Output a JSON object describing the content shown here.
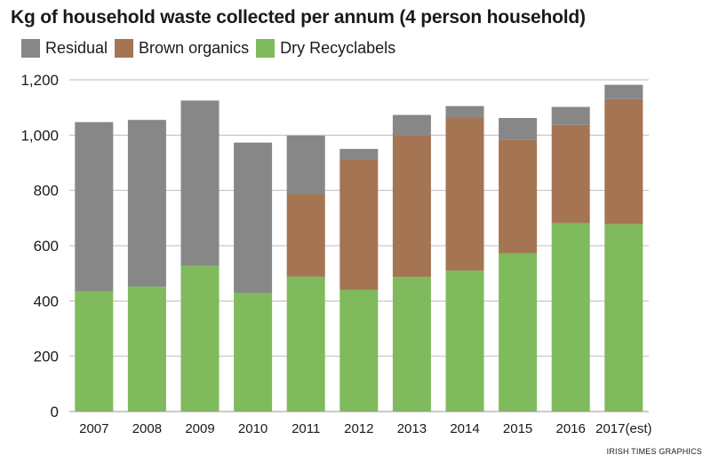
{
  "chart_data": {
    "type": "bar",
    "stacked": true,
    "title": "Kg of household waste collected per annum (4 person household)",
    "xlabel": "",
    "ylabel": "",
    "ylim": [
      0,
      1200
    ],
    "yticks": [
      "0",
      "200",
      "400",
      "600",
      "800",
      "1,000",
      "1,200"
    ],
    "ytick_values": [
      0,
      200,
      400,
      600,
      800,
      1000,
      1200
    ],
    "categories": [
      "2007",
      "2008",
      "2009",
      "2010",
      "2011",
      "2012",
      "2013",
      "2014",
      "2015",
      "2016",
      "2017(est)"
    ],
    "series": [
      {
        "name": "Dry Recyclabels",
        "color": "#7fba5c",
        "values": [
          435,
          452,
          528,
          430,
          488,
          440,
          487,
          510,
          572,
          682,
          678
        ]
      },
      {
        "name": "Brown organics",
        "color": "#a57452",
        "values": [
          0,
          0,
          0,
          0,
          298,
          473,
          513,
          552,
          412,
          355,
          452
        ]
      },
      {
        "name": "Residual",
        "color": "#878787",
        "values": [
          612,
          603,
          597,
          543,
          212,
          37,
          73,
          43,
          78,
          65,
          52
        ]
      }
    ],
    "legend_order": [
      "Residual",
      "Brown organics",
      "Dry Recyclabels"
    ]
  },
  "credit": "IRISH TIMES GRAPHICS",
  "colors": {
    "grid": "#bdbdbd",
    "axis": "#999999",
    "text": "#1a1a1a"
  }
}
